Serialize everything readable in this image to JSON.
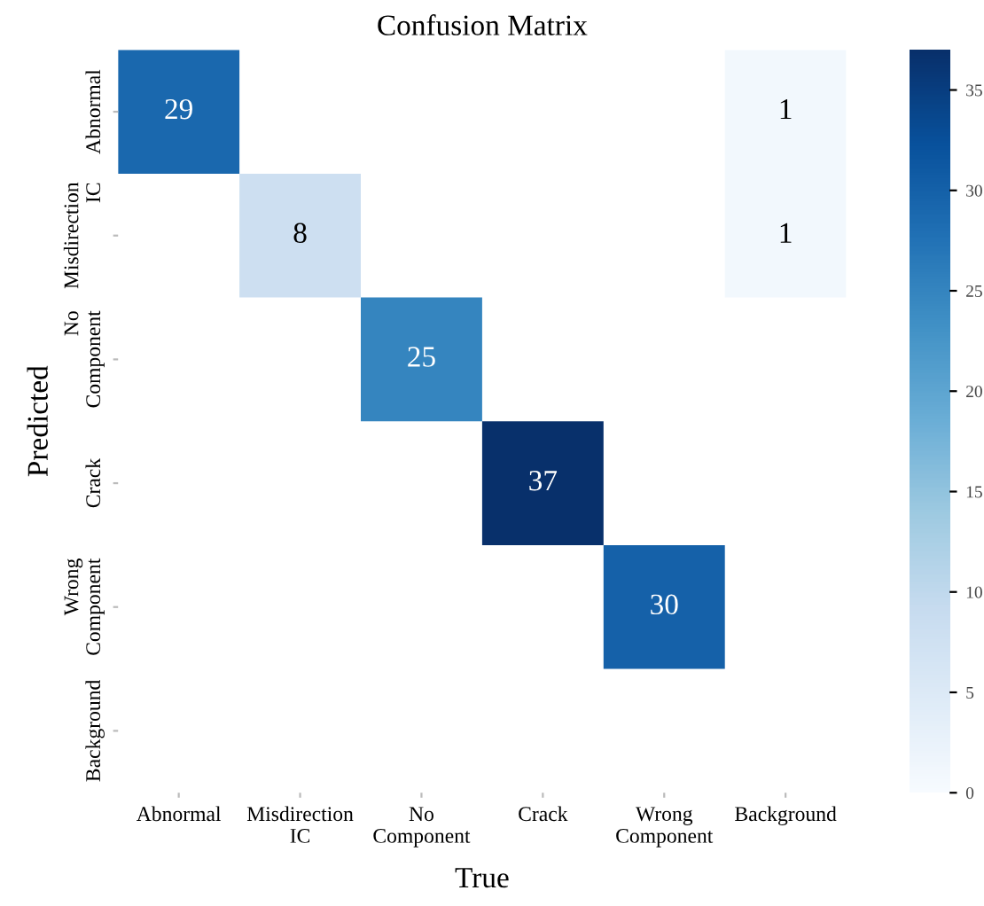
{
  "chart_data": {
    "type": "heatmap",
    "title": "Confusion Matrix",
    "xlabel": "True",
    "ylabel": "Predicted",
    "categories": [
      "Abnormal",
      "Misdirection\nIC",
      "No\nComponent",
      "Crack",
      "Wrong\nComponent",
      "Background"
    ],
    "y_categories": [
      "Abnormal",
      "Misdirection\nIC",
      "No\nComponent",
      "Crack",
      "Wrong\nComponent",
      "Background"
    ],
    "cells": [
      [
        29,
        null,
        null,
        null,
        null,
        1
      ],
      [
        null,
        8,
        null,
        null,
        null,
        1
      ],
      [
        null,
        null,
        25,
        null,
        null,
        null
      ],
      [
        null,
        null,
        null,
        37,
        null,
        null
      ],
      [
        null,
        null,
        null,
        null,
        30,
        null
      ],
      [
        null,
        null,
        null,
        null,
        null,
        null
      ]
    ],
    "clim": [
      0,
      37
    ],
    "cticks": [
      0,
      5,
      10,
      15,
      20,
      25,
      30,
      35
    ],
    "data_labels": true
  }
}
